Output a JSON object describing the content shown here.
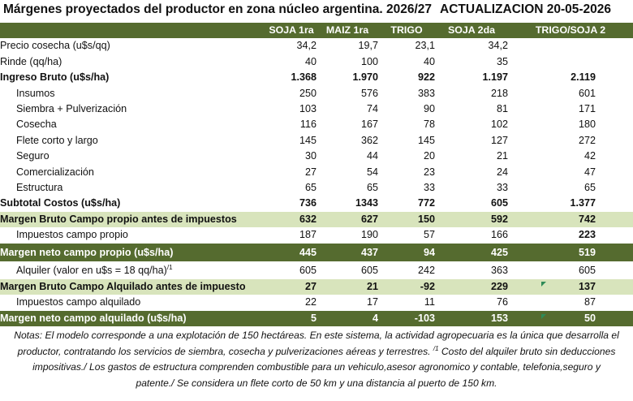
{
  "title": {
    "main": "Márgenes  proyectados del productor en zona núcleo argentina. 2026/27",
    "update": "ACTUALIZACION 20-05-2026"
  },
  "columns": [
    "SOJA 1ra",
    "MAIZ 1ra",
    "TRIGO",
    "SOJA 2da",
    "TRIGO/SOJA 2"
  ],
  "rows": [
    {
      "label": "Precio cosecha (u$s/qq)",
      "values": [
        "34,2",
        "19,7",
        "23,1",
        "34,2",
        ""
      ]
    },
    {
      "label": "Rinde (qq/ha)",
      "values": [
        "40",
        "100",
        "40",
        "35",
        ""
      ]
    },
    {
      "label": "Ingreso Bruto (u$s/ha)",
      "values": [
        "1.368",
        "1.970",
        "922",
        "1.197",
        "2.119"
      ]
    },
    {
      "label": "Insumos",
      "values": [
        "250",
        "576",
        "383",
        "218",
        "601"
      ]
    },
    {
      "label": "Siembra + Pulverización",
      "values": [
        "103",
        "74",
        "90",
        "81",
        "171"
      ]
    },
    {
      "label": "Cosecha",
      "values": [
        "116",
        "167",
        "78",
        "102",
        "180"
      ]
    },
    {
      "label": "Flete corto y largo",
      "values": [
        "145",
        "362",
        "145",
        "127",
        "272"
      ]
    },
    {
      "label": "Seguro",
      "values": [
        "30",
        "44",
        "20",
        "21",
        "42"
      ]
    },
    {
      "label": "Comercialización",
      "values": [
        "27",
        "54",
        "23",
        "24",
        "47"
      ]
    },
    {
      "label": "Estructura",
      "values": [
        "65",
        "65",
        "33",
        "33",
        "65"
      ]
    },
    {
      "label": "Subtotal Costos (u$s/ha)",
      "values": [
        "736",
        "1343",
        "772",
        "605",
        "1.377"
      ]
    },
    {
      "label": "Margen Bruto Campo propio antes de impuestos",
      "values": [
        "632",
        "627",
        "150",
        "592",
        "742"
      ]
    },
    {
      "label": "Impuestos  campo propio",
      "values": [
        "187",
        "190",
        "57",
        "166",
        "223"
      ]
    },
    {
      "label": "Margen neto campo propio (u$s/ha)",
      "values": [
        "445",
        "437",
        "94",
        "425",
        "519"
      ]
    },
    {
      "label": "Alquiler (valor en u$s = 18 qq/ha)",
      "label_sup": "/1",
      "values": [
        "605",
        "605",
        "242",
        "363",
        "605"
      ]
    },
    {
      "label": "Margen Bruto Campo Alquilado antes de impuesto",
      "values": [
        "27",
        "21",
        "-92",
        "229",
        "137"
      ]
    },
    {
      "label": "Impuestos campo alquilado",
      "values": [
        "22",
        "17",
        "11",
        "76",
        "87"
      ]
    },
    {
      "label": "Margen neto campo alquilado (u$s/ha)",
      "values": [
        "5",
        "4",
        "-103",
        "153",
        "50"
      ]
    }
  ],
  "notes": {
    "line1": "Notas: El modelo corresponde a una explotación de 150 hectáreas. En este sistema, la actividad agropecuaria es la única que desarrolla el",
    "line2a": "productor, contratando los servicios de siembra, cosecha y pulverizaciones aéreas y terrestres.",
    "line2sup": "/1",
    "line2b": "Costo del alquiler bruto sin deducciones",
    "line3": "impositivas./ Los gastos de estructura comprenden combustible para un vehiculo,asesor agronomico y contable, telefonia,seguro y",
    "line4": "patente./ Se considera un flete corto de 50 km y una distancia al puerto de 150 km."
  },
  "colors": {
    "header": "#556b2f",
    "light_band": "#d8e4bc",
    "dark_band": "#556b2f"
  }
}
